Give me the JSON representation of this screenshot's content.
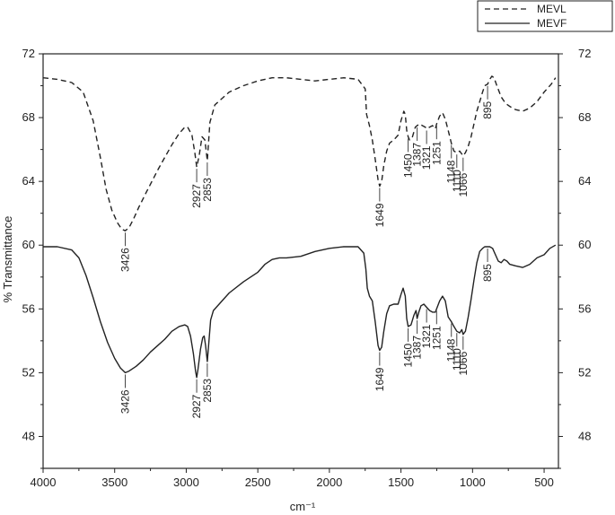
{
  "chart_data": {
    "type": "line",
    "title": "",
    "xlabel": "cm⁻¹",
    "ylabel": "% Transmittance",
    "xlim": [
      4000,
      400
    ],
    "ylim": [
      46,
      72
    ],
    "x_reversed": true,
    "x_ticks": [
      4000,
      3500,
      3000,
      2500,
      2000,
      1500,
      1000,
      500
    ],
    "y_ticks": [
      48,
      52,
      56,
      60,
      64,
      68,
      72
    ],
    "legend_position": "top-right",
    "series": [
      {
        "name": "MEVL",
        "line_style": "dashed",
        "color": "#222222",
        "points": [
          [
            4000,
            70.5
          ],
          [
            3900,
            70.4
          ],
          [
            3800,
            70.2
          ],
          [
            3720,
            69.6
          ],
          [
            3650,
            67.8
          ],
          [
            3600,
            65.5
          ],
          [
            3560,
            63.5
          ],
          [
            3520,
            62.2
          ],
          [
            3480,
            61.4
          ],
          [
            3450,
            61.0
          ],
          [
            3426,
            60.9
          ],
          [
            3400,
            61.1
          ],
          [
            3370,
            61.6
          ],
          [
            3330,
            62.4
          ],
          [
            3280,
            63.3
          ],
          [
            3200,
            64.7
          ],
          [
            3150,
            65.5
          ],
          [
            3100,
            66.3
          ],
          [
            3050,
            67.0
          ],
          [
            3010,
            67.4
          ],
          [
            2990,
            67.4
          ],
          [
            2960,
            66.9
          ],
          [
            2940,
            65.8
          ],
          [
            2927,
            64.9
          ],
          [
            2910,
            65.6
          ],
          [
            2890,
            66.8
          ],
          [
            2870,
            66.6
          ],
          [
            2853,
            65.3
          ],
          [
            2835,
            67.7
          ],
          [
            2800,
            68.8
          ],
          [
            2700,
            69.6
          ],
          [
            2600,
            70.0
          ],
          [
            2500,
            70.3
          ],
          [
            2400,
            70.5
          ],
          [
            2300,
            70.5
          ],
          [
            2200,
            70.4
          ],
          [
            2100,
            70.3
          ],
          [
            2000,
            70.4
          ],
          [
            1900,
            70.5
          ],
          [
            1800,
            70.4
          ],
          [
            1750,
            69.8
          ],
          [
            1740,
            68.2
          ],
          [
            1720,
            67.5
          ],
          [
            1700,
            66.6
          ],
          [
            1680,
            65.4
          ],
          [
            1660,
            64.1
          ],
          [
            1649,
            63.7
          ],
          [
            1635,
            64.0
          ],
          [
            1620,
            65.0
          ],
          [
            1600,
            65.9
          ],
          [
            1580,
            66.4
          ],
          [
            1550,
            66.6
          ],
          [
            1520,
            66.9
          ],
          [
            1500,
            67.8
          ],
          [
            1480,
            68.4
          ],
          [
            1470,
            68.2
          ],
          [
            1460,
            67.2
          ],
          [
            1450,
            66.8
          ],
          [
            1440,
            66.6
          ],
          [
            1420,
            66.8
          ],
          [
            1400,
            67.4
          ],
          [
            1387,
            67.5
          ],
          [
            1370,
            67.6
          ],
          [
            1350,
            67.5
          ],
          [
            1330,
            67.4
          ],
          [
            1321,
            67.3
          ],
          [
            1300,
            67.4
          ],
          [
            1280,
            67.5
          ],
          [
            1260,
            67.3
          ],
          [
            1251,
            67.6
          ],
          [
            1230,
            68.1
          ],
          [
            1210,
            68.3
          ],
          [
            1190,
            67.9
          ],
          [
            1170,
            67.2
          ],
          [
            1148,
            66.4
          ],
          [
            1130,
            65.9
          ],
          [
            1110,
            65.8
          ],
          [
            1090,
            65.9
          ],
          [
            1066,
            65.6
          ],
          [
            1050,
            65.8
          ],
          [
            1030,
            66.2
          ],
          [
            1010,
            66.8
          ],
          [
            990,
            67.6
          ],
          [
            970,
            68.4
          ],
          [
            950,
            69.0
          ],
          [
            930,
            69.6
          ],
          [
            915,
            70.0
          ],
          [
            895,
            70.1
          ],
          [
            880,
            70.4
          ],
          [
            865,
            70.6
          ],
          [
            850,
            70.5
          ],
          [
            830,
            70.0
          ],
          [
            800,
            69.3
          ],
          [
            770,
            68.9
          ],
          [
            740,
            68.7
          ],
          [
            700,
            68.5
          ],
          [
            650,
            68.4
          ],
          [
            600,
            68.6
          ],
          [
            550,
            69.0
          ],
          [
            500,
            69.6
          ],
          [
            450,
            70.1
          ],
          [
            420,
            70.5
          ]
        ]
      },
      {
        "name": "MEVF",
        "line_style": "solid",
        "color": "#222222",
        "points": [
          [
            4000,
            59.9
          ],
          [
            3900,
            59.9
          ],
          [
            3800,
            59.7
          ],
          [
            3750,
            59.2
          ],
          [
            3700,
            58.1
          ],
          [
            3650,
            56.7
          ],
          [
            3600,
            55.2
          ],
          [
            3550,
            53.9
          ],
          [
            3500,
            52.9
          ],
          [
            3460,
            52.3
          ],
          [
            3426,
            52.0
          ],
          [
            3400,
            52.1
          ],
          [
            3350,
            52.4
          ],
          [
            3300,
            52.8
          ],
          [
            3250,
            53.3
          ],
          [
            3200,
            53.7
          ],
          [
            3150,
            54.1
          ],
          [
            3100,
            54.6
          ],
          [
            3050,
            54.9
          ],
          [
            3010,
            55.0
          ],
          [
            2990,
            54.9
          ],
          [
            2970,
            54.3
          ],
          [
            2950,
            53.2
          ],
          [
            2935,
            52.1
          ],
          [
            2927,
            51.7
          ],
          [
            2918,
            52.2
          ],
          [
            2900,
            53.5
          ],
          [
            2885,
            54.2
          ],
          [
            2875,
            54.3
          ],
          [
            2865,
            53.7
          ],
          [
            2853,
            52.7
          ],
          [
            2845,
            53.6
          ],
          [
            2830,
            55.3
          ],
          [
            2810,
            55.9
          ],
          [
            2750,
            56.5
          ],
          [
            2700,
            57.0
          ],
          [
            2600,
            57.7
          ],
          [
            2500,
            58.3
          ],
          [
            2450,
            58.8
          ],
          [
            2400,
            59.1
          ],
          [
            2350,
            59.2
          ],
          [
            2300,
            59.2
          ],
          [
            2200,
            59.3
          ],
          [
            2100,
            59.6
          ],
          [
            2000,
            59.8
          ],
          [
            1900,
            59.9
          ],
          [
            1800,
            59.9
          ],
          [
            1760,
            59.5
          ],
          [
            1745,
            58.5
          ],
          [
            1735,
            57.3
          ],
          [
            1720,
            56.8
          ],
          [
            1700,
            56.5
          ],
          [
            1680,
            55.2
          ],
          [
            1660,
            53.7
          ],
          [
            1649,
            53.4
          ],
          [
            1635,
            53.6
          ],
          [
            1620,
            54.6
          ],
          [
            1600,
            55.7
          ],
          [
            1580,
            56.2
          ],
          [
            1550,
            56.3
          ],
          [
            1520,
            56.3
          ],
          [
            1500,
            56.9
          ],
          [
            1485,
            57.3
          ],
          [
            1470,
            56.8
          ],
          [
            1460,
            55.4
          ],
          [
            1450,
            54.9
          ],
          [
            1430,
            55.0
          ],
          [
            1410,
            55.6
          ],
          [
            1395,
            55.9
          ],
          [
            1387,
            55.4
          ],
          [
            1375,
            55.8
          ],
          [
            1360,
            56.2
          ],
          [
            1340,
            56.3
          ],
          [
            1321,
            56.1
          ],
          [
            1300,
            55.9
          ],
          [
            1280,
            55.8
          ],
          [
            1260,
            55.8
          ],
          [
            1251,
            56.0
          ],
          [
            1230,
            56.5
          ],
          [
            1210,
            56.8
          ],
          [
            1190,
            56.5
          ],
          [
            1170,
            55.5
          ],
          [
            1148,
            55.2
          ],
          [
            1130,
            54.9
          ],
          [
            1110,
            54.6
          ],
          [
            1090,
            54.5
          ],
          [
            1075,
            54.7
          ],
          [
            1066,
            54.4
          ],
          [
            1050,
            54.6
          ],
          [
            1030,
            55.5
          ],
          [
            1010,
            56.6
          ],
          [
            990,
            57.8
          ],
          [
            970,
            58.9
          ],
          [
            950,
            59.6
          ],
          [
            930,
            59.8
          ],
          [
            915,
            59.9
          ],
          [
            895,
            59.9
          ],
          [
            880,
            59.9
          ],
          [
            860,
            59.8
          ],
          [
            840,
            59.4
          ],
          [
            820,
            59.0
          ],
          [
            800,
            58.9
          ],
          [
            780,
            59.1
          ],
          [
            760,
            59.0
          ],
          [
            740,
            58.8
          ],
          [
            700,
            58.7
          ],
          [
            650,
            58.6
          ],
          [
            600,
            58.8
          ],
          [
            550,
            59.2
          ],
          [
            500,
            59.4
          ],
          [
            460,
            59.8
          ],
          [
            420,
            60.0
          ]
        ]
      }
    ],
    "peak_labels": {
      "MEVL": [
        {
          "x": 3426,
          "y": 60.9,
          "text": "3426"
        },
        {
          "x": 2927,
          "y": 64.9,
          "text": "2927"
        },
        {
          "x": 2853,
          "y": 65.3,
          "text": "2853"
        },
        {
          "x": 1649,
          "y": 63.7,
          "text": "1649"
        },
        {
          "x": 1450,
          "y": 66.8,
          "text": "1450"
        },
        {
          "x": 1387,
          "y": 67.5,
          "text": "1387"
        },
        {
          "x": 1321,
          "y": 67.3,
          "text": "1321"
        },
        {
          "x": 1251,
          "y": 67.6,
          "text": "1251"
        },
        {
          "x": 1148,
          "y": 66.4,
          "text": "1148"
        },
        {
          "x": 1110,
          "y": 65.8,
          "text": "1110"
        },
        {
          "x": 1066,
          "y": 65.6,
          "text": "1066"
        },
        {
          "x": 895,
          "y": 70.1,
          "text": "895"
        }
      ],
      "MEVF": [
        {
          "x": 3426,
          "y": 52.0,
          "text": "3426"
        },
        {
          "x": 2927,
          "y": 51.7,
          "text": "2927"
        },
        {
          "x": 2853,
          "y": 52.7,
          "text": "2853"
        },
        {
          "x": 1649,
          "y": 53.4,
          "text": "1649"
        },
        {
          "x": 1450,
          "y": 54.9,
          "text": "1450"
        },
        {
          "x": 1387,
          "y": 55.4,
          "text": "1387"
        },
        {
          "x": 1321,
          "y": 56.1,
          "text": "1321"
        },
        {
          "x": 1251,
          "y": 56.0,
          "text": "1251"
        },
        {
          "x": 1148,
          "y": 55.2,
          "text": "1148"
        },
        {
          "x": 1110,
          "y": 54.6,
          "text": "1110"
        },
        {
          "x": 1066,
          "y": 54.4,
          "text": "1066"
        },
        {
          "x": 895,
          "y": 59.9,
          "text": "895"
        }
      ]
    }
  }
}
